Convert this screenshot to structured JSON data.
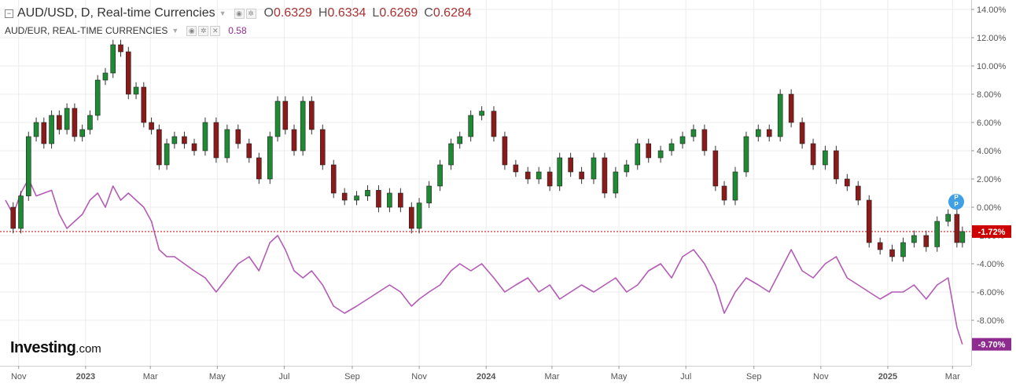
{
  "header": {
    "main_symbol": "AUD/USD, D, Real-time Currencies",
    "ohlc": [
      {
        "key": "O",
        "value": "0.6329"
      },
      {
        "key": "H",
        "value": "0.6334"
      },
      {
        "key": "L",
        "value": "0.6269"
      },
      {
        "key": "C",
        "value": "0.6284"
      }
    ],
    "compare_symbol": "AUD/EUR, REAL-TIME CURRENCIES",
    "compare_value": "0.58"
  },
  "logo": {
    "main": "Investing",
    "suffix": ".com"
  },
  "colors": {
    "up": "#1f8a34",
    "down": "#8b1a1a",
    "compare": "#b35bb5",
    "last_price": "#cc0000",
    "compare_badge": "#8e2b8e",
    "grid": "#ececec"
  },
  "chart_data": {
    "type": "line",
    "y_unit": "percent change",
    "ylim": [
      -11,
      14.5
    ],
    "y_ticks": [
      "14.00%",
      "12.00%",
      "10.00%",
      "8.00%",
      "6.00%",
      "4.00%",
      "2.00%",
      "0.00%",
      "-2.00%",
      "-4.00%",
      "-6.00%",
      "-8.00%"
    ],
    "x_ticks": [
      "Nov",
      "2023",
      "Mar",
      "May",
      "Jul",
      "Sep",
      "Nov",
      "2024",
      "Mar",
      "May",
      "Jul",
      "Sep",
      "Nov",
      "2025",
      "Mar"
    ],
    "grid": true,
    "series": [
      {
        "name": "AUD/USD, D, Real-time Currencies",
        "style": "candlestick",
        "last_label": "-1.72%",
        "points": [
          [
            "2022-10-20",
            0.0
          ],
          [
            "2022-10-27",
            -1.5
          ],
          [
            "2022-11-03",
            0.8
          ],
          [
            "2022-11-10",
            5.0
          ],
          [
            "2022-11-17",
            6.0
          ],
          [
            "2022-11-24",
            4.5
          ],
          [
            "2022-12-01",
            6.5
          ],
          [
            "2022-12-08",
            5.5
          ],
          [
            "2022-12-15",
            7.0
          ],
          [
            "2022-12-22",
            5.0
          ],
          [
            "2022-12-29",
            5.5
          ],
          [
            "2023-01-05",
            6.5
          ],
          [
            "2023-01-12",
            9.0
          ],
          [
            "2023-01-19",
            9.5
          ],
          [
            "2023-01-26",
            11.5
          ],
          [
            "2023-02-02",
            11.0
          ],
          [
            "2023-02-09",
            8.0
          ],
          [
            "2023-02-16",
            8.5
          ],
          [
            "2023-02-23",
            6.0
          ],
          [
            "2023-03-02",
            5.5
          ],
          [
            "2023-03-09",
            3.0
          ],
          [
            "2023-03-16",
            4.5
          ],
          [
            "2023-03-23",
            5.0
          ],
          [
            "2023-04-01",
            4.5
          ],
          [
            "2023-04-10",
            4.0
          ],
          [
            "2023-04-20",
            6.0
          ],
          [
            "2023-04-30",
            3.5
          ],
          [
            "2023-05-10",
            5.5
          ],
          [
            "2023-05-20",
            4.5
          ],
          [
            "2023-05-30",
            3.5
          ],
          [
            "2023-06-08",
            2.0
          ],
          [
            "2023-06-18",
            5.0
          ],
          [
            "2023-06-25",
            7.5
          ],
          [
            "2023-07-02",
            5.5
          ],
          [
            "2023-07-10",
            4.0
          ],
          [
            "2023-07-18",
            7.5
          ],
          [
            "2023-07-26",
            5.5
          ],
          [
            "2023-08-05",
            3.0
          ],
          [
            "2023-08-15",
            1.0
          ],
          [
            "2023-08-25",
            0.5
          ],
          [
            "2023-09-05",
            0.8
          ],
          [
            "2023-09-15",
            1.2
          ],
          [
            "2023-09-25",
            0.0
          ],
          [
            "2023-10-05",
            1.0
          ],
          [
            "2023-10-15",
            0.0
          ],
          [
            "2023-10-25",
            -1.5
          ],
          [
            "2023-11-01",
            0.3
          ],
          [
            "2023-11-10",
            1.5
          ],
          [
            "2023-11-20",
            3.0
          ],
          [
            "2023-11-30",
            4.5
          ],
          [
            "2023-12-08",
            5.0
          ],
          [
            "2023-12-18",
            6.5
          ],
          [
            "2023-12-28",
            6.8
          ],
          [
            "2024-01-08",
            5.0
          ],
          [
            "2024-01-18",
            3.0
          ],
          [
            "2024-01-28",
            2.5
          ],
          [
            "2024-02-08",
            2.0
          ],
          [
            "2024-02-18",
            2.5
          ],
          [
            "2024-02-28",
            1.5
          ],
          [
            "2024-03-08",
            3.5
          ],
          [
            "2024-03-18",
            2.5
          ],
          [
            "2024-03-28",
            2.0
          ],
          [
            "2024-04-08",
            3.5
          ],
          [
            "2024-04-18",
            1.0
          ],
          [
            "2024-04-28",
            2.5
          ],
          [
            "2024-05-08",
            3.0
          ],
          [
            "2024-05-18",
            4.5
          ],
          [
            "2024-05-28",
            3.5
          ],
          [
            "2024-06-08",
            4.0
          ],
          [
            "2024-06-18",
            4.5
          ],
          [
            "2024-06-28",
            5.0
          ],
          [
            "2024-07-08",
            5.5
          ],
          [
            "2024-07-18",
            4.0
          ],
          [
            "2024-07-28",
            1.5
          ],
          [
            "2024-08-05",
            0.5
          ],
          [
            "2024-08-15",
            2.5
          ],
          [
            "2024-08-25",
            5.0
          ],
          [
            "2024-09-05",
            5.5
          ],
          [
            "2024-09-15",
            5.0
          ],
          [
            "2024-09-25",
            8.0
          ],
          [
            "2024-10-05",
            6.0
          ],
          [
            "2024-10-15",
            4.5
          ],
          [
            "2024-10-25",
            3.0
          ],
          [
            "2024-11-05",
            4.0
          ],
          [
            "2024-11-15",
            2.0
          ],
          [
            "2024-11-25",
            1.5
          ],
          [
            "2024-12-05",
            0.5
          ],
          [
            "2024-12-15",
            -2.5
          ],
          [
            "2024-12-25",
            -3.0
          ],
          [
            "2025-01-05",
            -3.5
          ],
          [
            "2025-01-15",
            -2.5
          ],
          [
            "2025-01-25",
            -2.0
          ],
          [
            "2025-02-05",
            -2.8
          ],
          [
            "2025-02-15",
            -1.0
          ],
          [
            "2025-02-25",
            -0.5
          ],
          [
            "2025-03-05",
            -2.5
          ],
          [
            "2025-03-10",
            -1.72
          ]
        ]
      },
      {
        "name": "AUD/EUR, REAL-TIME CURRENCIES",
        "style": "line",
        "last_label": "-9.70%",
        "points": [
          [
            "2022-10-20",
            0.5
          ],
          [
            "2022-10-27",
            -0.5
          ],
          [
            "2022-11-03",
            1.0
          ],
          [
            "2022-11-10",
            2.0
          ],
          [
            "2022-11-17",
            0.8
          ],
          [
            "2022-11-24",
            1.0
          ],
          [
            "2022-12-01",
            1.2
          ],
          [
            "2022-12-08",
            -0.5
          ],
          [
            "2022-12-15",
            -1.5
          ],
          [
            "2022-12-22",
            -1.0
          ],
          [
            "2022-12-29",
            -0.5
          ],
          [
            "2023-01-05",
            0.5
          ],
          [
            "2023-01-12",
            1.0
          ],
          [
            "2023-01-19",
            0.0
          ],
          [
            "2023-01-26",
            1.5
          ],
          [
            "2023-02-02",
            0.5
          ],
          [
            "2023-02-09",
            1.0
          ],
          [
            "2023-02-16",
            0.5
          ],
          [
            "2023-02-23",
            0.0
          ],
          [
            "2023-03-02",
            -1.0
          ],
          [
            "2023-03-09",
            -3.0
          ],
          [
            "2023-03-16",
            -3.5
          ],
          [
            "2023-03-23",
            -3.5
          ],
          [
            "2023-04-01",
            -4.0
          ],
          [
            "2023-04-10",
            -4.5
          ],
          [
            "2023-04-20",
            -5.0
          ],
          [
            "2023-04-30",
            -6.0
          ],
          [
            "2023-05-10",
            -5.0
          ],
          [
            "2023-05-20",
            -4.0
          ],
          [
            "2023-05-30",
            -3.5
          ],
          [
            "2023-06-08",
            -4.5
          ],
          [
            "2023-06-18",
            -2.5
          ],
          [
            "2023-06-25",
            -2.0
          ],
          [
            "2023-07-02",
            -3.0
          ],
          [
            "2023-07-10",
            -4.5
          ],
          [
            "2023-07-18",
            -5.0
          ],
          [
            "2023-07-26",
            -4.5
          ],
          [
            "2023-08-05",
            -5.5
          ],
          [
            "2023-08-15",
            -7.0
          ],
          [
            "2023-08-25",
            -7.5
          ],
          [
            "2023-09-05",
            -7.0
          ],
          [
            "2023-09-15",
            -6.5
          ],
          [
            "2023-09-25",
            -6.0
          ],
          [
            "2023-10-05",
            -5.5
          ],
          [
            "2023-10-15",
            -6.0
          ],
          [
            "2023-10-25",
            -7.0
          ],
          [
            "2023-11-01",
            -6.5
          ],
          [
            "2023-11-10",
            -6.0
          ],
          [
            "2023-11-20",
            -5.5
          ],
          [
            "2023-11-30",
            -4.5
          ],
          [
            "2023-12-08",
            -4.0
          ],
          [
            "2023-12-18",
            -4.5
          ],
          [
            "2023-12-28",
            -4.0
          ],
          [
            "2024-01-08",
            -5.0
          ],
          [
            "2024-01-18",
            -6.0
          ],
          [
            "2024-01-28",
            -5.5
          ],
          [
            "2024-02-08",
            -5.0
          ],
          [
            "2024-02-18",
            -6.0
          ],
          [
            "2024-02-28",
            -5.5
          ],
          [
            "2024-03-08",
            -6.5
          ],
          [
            "2024-03-18",
            -6.0
          ],
          [
            "2024-03-28",
            -5.5
          ],
          [
            "2024-04-08",
            -6.0
          ],
          [
            "2024-04-18",
            -5.5
          ],
          [
            "2024-04-28",
            -5.0
          ],
          [
            "2024-05-08",
            -6.0
          ],
          [
            "2024-05-18",
            -5.5
          ],
          [
            "2024-05-28",
            -4.5
          ],
          [
            "2024-06-08",
            -4.0
          ],
          [
            "2024-06-18",
            -5.0
          ],
          [
            "2024-06-28",
            -3.5
          ],
          [
            "2024-07-08",
            -3.0
          ],
          [
            "2024-07-18",
            -4.0
          ],
          [
            "2024-07-28",
            -5.5
          ],
          [
            "2024-08-05",
            -7.5
          ],
          [
            "2024-08-15",
            -6.0
          ],
          [
            "2024-08-25",
            -5.0
          ],
          [
            "2024-09-05",
            -5.5
          ],
          [
            "2024-09-15",
            -6.0
          ],
          [
            "2024-09-25",
            -4.5
          ],
          [
            "2024-10-05",
            -3.0
          ],
          [
            "2024-10-15",
            -4.5
          ],
          [
            "2024-10-25",
            -5.0
          ],
          [
            "2024-11-05",
            -4.0
          ],
          [
            "2024-11-15",
            -3.5
          ],
          [
            "2024-11-25",
            -5.0
          ],
          [
            "2024-12-05",
            -5.5
          ],
          [
            "2024-12-15",
            -6.0
          ],
          [
            "2024-12-25",
            -6.5
          ],
          [
            "2025-01-05",
            -6.0
          ],
          [
            "2025-01-15",
            -6.0
          ],
          [
            "2025-01-25",
            -5.5
          ],
          [
            "2025-02-05",
            -6.5
          ],
          [
            "2025-02-15",
            -5.5
          ],
          [
            "2025-02-25",
            -5.0
          ],
          [
            "2025-03-05",
            -8.5
          ],
          [
            "2025-03-10",
            -9.7
          ]
        ]
      }
    ]
  }
}
